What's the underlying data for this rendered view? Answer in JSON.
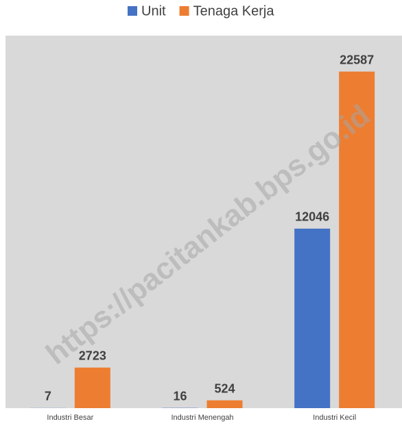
{
  "chart_data": {
    "type": "bar",
    "categories": [
      "Industri Besar",
      "Industri Menengah",
      "Industri Kecil"
    ],
    "series": [
      {
        "name": "Unit",
        "color": "#4472c4",
        "values": [
          7,
          16,
          12046
        ]
      },
      {
        "name": "Tenaga Kerja",
        "color": "#ed7d31",
        "values": [
          2723,
          524,
          22587
        ]
      }
    ],
    "ylim": [
      0,
      25000
    ],
    "legend": "top",
    "watermark": "https://pacitankab.bps.go.id"
  }
}
